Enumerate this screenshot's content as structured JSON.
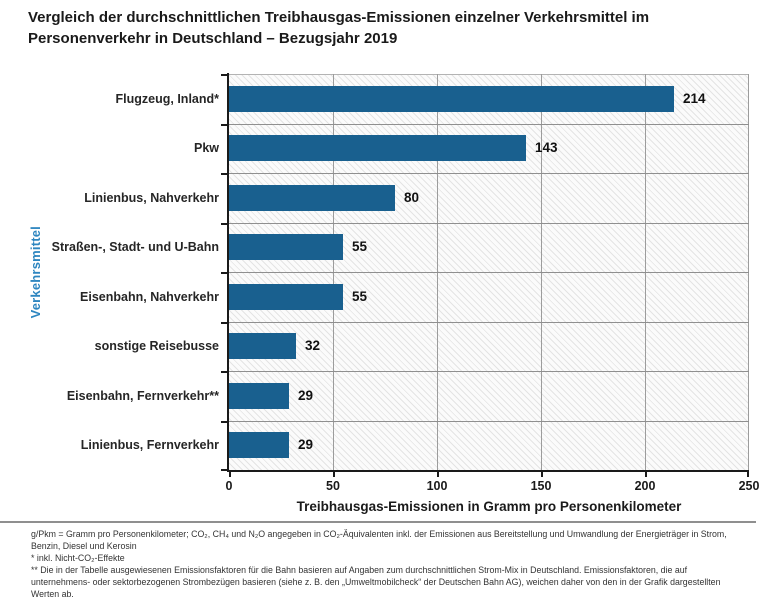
{
  "title": {
    "line1": "Vergleich der durchschnittlichen Treibhausgas-Emissionen einzelner Verkehrsmittel im",
    "line2": "Personenverkehr in Deutschland – Bezugsjahr 2019"
  },
  "chart_data": {
    "type": "bar",
    "orientation": "horizontal",
    "categories": [
      "Flugzeug, Inland*",
      "Pkw",
      "Linienbus, Nahverkehr",
      "Straßen-, Stadt- und U-Bahn",
      "Eisenbahn, Nahverkehr",
      "sonstige Reisebusse",
      "Eisenbahn, Fernverkehr**",
      "Linienbus, Fernverkehr"
    ],
    "values": [
      214,
      143,
      80,
      55,
      55,
      32,
      29,
      29
    ],
    "xlabel": "Treibhausgas-Emissionen in Gramm pro Personenkilometer",
    "ylabel": "Verkehrsmittel",
    "xlim": [
      0,
      250
    ],
    "xticks": [
      0,
      50,
      100,
      150,
      200,
      250
    ],
    "grid": true,
    "legend": "none",
    "bar_color": "#19608f",
    "ylabel_color": "#2e86c0",
    "plot_background": "hatched"
  },
  "footnotes": [
    "g/Pkm = Gramm pro Personenkilometer; CO₂, CH₄ und N₂O angegeben in CO₂-Äquivalenten inkl. der Emissionen aus Bereitstellung und Umwandlung der Energieträger in Strom, Benzin, Diesel und Kerosin",
    "* inkl. Nicht-CO₂-Effekte",
    "** Die in der Tabelle ausgewiesenen Emissionsfaktoren für die Bahn basieren auf Angaben zum durchschnittlichen Strom-Mix in Deutschland. Emissionsfaktoren, die auf unternehmens- oder sektorbezogenen Strombezügen basieren (siehe z. B. den „Umweltmobilcheck“ der Deutschen Bahn AG), weichen daher von den in der Grafik dargestellten Werten ab."
  ]
}
